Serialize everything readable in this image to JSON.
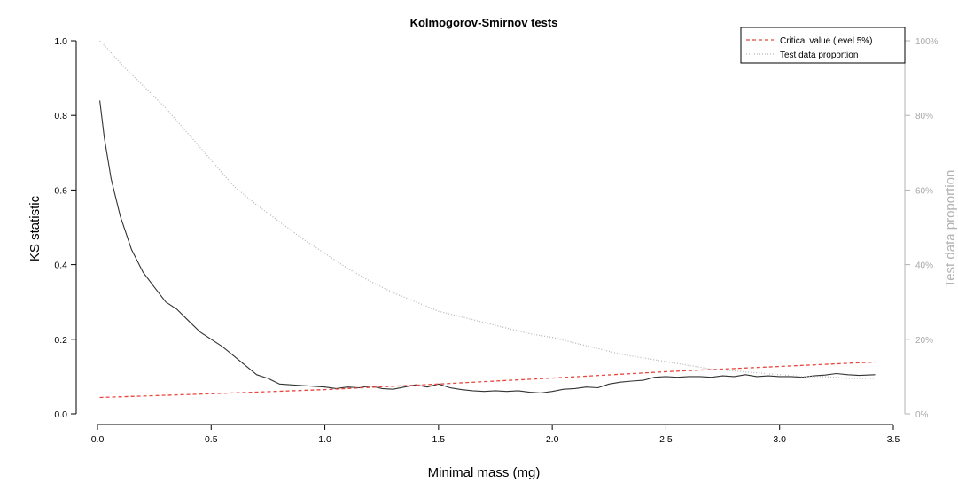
{
  "chart_data": {
    "type": "line",
    "title": "Kolmogorov-Smirnov tests",
    "xlabel": "Minimal mass (mg)",
    "ylabel": "KS statistic",
    "y2label": "Test data proportion",
    "xlim": [
      0,
      3.5
    ],
    "ylim": [
      0,
      1.0
    ],
    "y2lim": [
      0,
      1.0
    ],
    "x_ticks": [
      "0.0",
      "0.5",
      "1.0",
      "1.5",
      "2.0",
      "2.5",
      "3.0",
      "3.5"
    ],
    "y_ticks": [
      "0.0",
      "0.2",
      "0.4",
      "0.6",
      "0.8",
      "1.0"
    ],
    "y2_ticks": [
      "0%",
      "20%",
      "40%",
      "60%",
      "80%",
      "100%"
    ],
    "legend": {
      "position": "top-right",
      "entries": [
        "Critical value (level 5%)",
        "Test data proportion"
      ]
    },
    "series": [
      {
        "key": "ks",
        "axis": "left",
        "style": "solid",
        "color": "#333333",
        "x": [
          0.01,
          0.03,
          0.06,
          0.1,
          0.15,
          0.2,
          0.25,
          0.3,
          0.35,
          0.4,
          0.45,
          0.5,
          0.55,
          0.6,
          0.65,
          0.7,
          0.75,
          0.8,
          0.85,
          0.9,
          0.95,
          1.0,
          1.05,
          1.1,
          1.15,
          1.2,
          1.25,
          1.3,
          1.35,
          1.4,
          1.45,
          1.5,
          1.55,
          1.6,
          1.65,
          1.7,
          1.75,
          1.8,
          1.85,
          1.9,
          1.95,
          2.0,
          2.05,
          2.1,
          2.15,
          2.2,
          2.25,
          2.3,
          2.35,
          2.4,
          2.45,
          2.5,
          2.55,
          2.6,
          2.65,
          2.7,
          2.75,
          2.8,
          2.85,
          2.9,
          2.95,
          3.0,
          3.05,
          3.1,
          3.15,
          3.2,
          3.25,
          3.3,
          3.35,
          3.42
        ],
        "values": [
          0.84,
          0.74,
          0.63,
          0.53,
          0.44,
          0.38,
          0.34,
          0.3,
          0.28,
          0.25,
          0.22,
          0.2,
          0.18,
          0.155,
          0.13,
          0.105,
          0.095,
          0.08,
          0.078,
          0.076,
          0.074,
          0.072,
          0.068,
          0.072,
          0.07,
          0.075,
          0.068,
          0.066,
          0.072,
          0.078,
          0.072,
          0.08,
          0.07,
          0.065,
          0.062,
          0.06,
          0.062,
          0.06,
          0.062,
          0.058,
          0.056,
          0.06,
          0.066,
          0.068,
          0.072,
          0.07,
          0.08,
          0.085,
          0.088,
          0.09,
          0.098,
          0.1,
          0.098,
          0.1,
          0.1,
          0.098,
          0.102,
          0.1,
          0.105,
          0.1,
          0.102,
          0.1,
          0.1,
          0.098,
          0.102,
          0.104,
          0.108,
          0.105,
          0.103,
          0.105
        ]
      },
      {
        "key": "critical",
        "axis": "left",
        "style": "dashed",
        "color": "#e8473f",
        "name": "Critical value (level 5%)",
        "x": [
          0.01,
          0.5,
          1.0,
          1.5,
          2.0,
          2.5,
          3.0,
          3.42
        ],
        "values": [
          0.044,
          0.054,
          0.065,
          0.08,
          0.096,
          0.113,
          0.127,
          0.139
        ]
      },
      {
        "key": "proportion",
        "axis": "right",
        "style": "dotted",
        "color": "#b8b8b8",
        "name": "Test data proportion",
        "x": [
          0.01,
          0.05,
          0.1,
          0.2,
          0.3,
          0.4,
          0.5,
          0.6,
          0.7,
          0.8,
          0.9,
          1.0,
          1.1,
          1.2,
          1.3,
          1.4,
          1.5,
          1.6,
          1.7,
          1.8,
          1.9,
          2.0,
          2.1,
          2.2,
          2.3,
          2.4,
          2.5,
          2.6,
          2.7,
          2.8,
          2.9,
          3.0,
          3.1,
          3.2,
          3.3,
          3.42
        ],
        "values": [
          1.0,
          0.975,
          0.94,
          0.88,
          0.82,
          0.75,
          0.68,
          0.61,
          0.56,
          0.515,
          0.47,
          0.43,
          0.39,
          0.355,
          0.325,
          0.3,
          0.275,
          0.26,
          0.245,
          0.23,
          0.215,
          0.205,
          0.19,
          0.175,
          0.16,
          0.15,
          0.14,
          0.13,
          0.12,
          0.115,
          0.11,
          0.105,
          0.1,
          0.1,
          0.095,
          0.095
        ]
      }
    ]
  }
}
